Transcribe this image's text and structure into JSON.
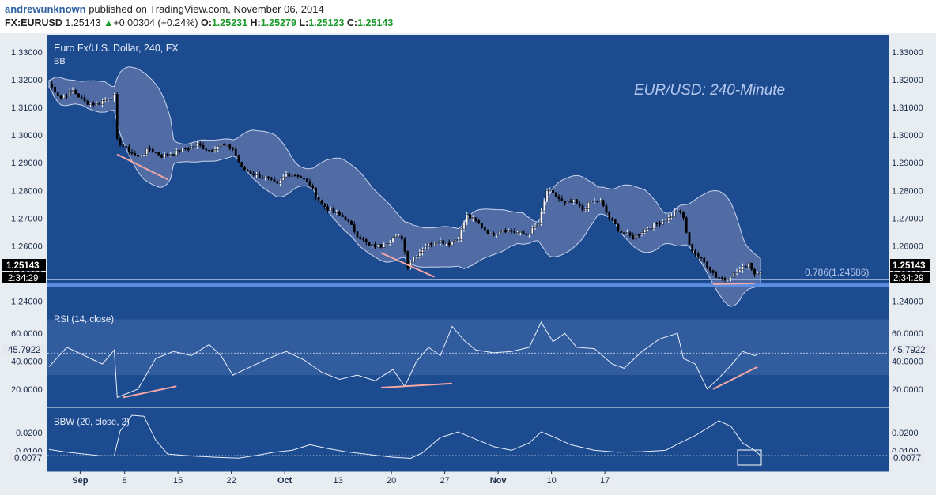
{
  "header": {
    "author": "andrewunknown",
    "published": "published on TradingView.com, November 06, 2014",
    "symbol": "FX:EURUSD",
    "last": "1.25143",
    "change_arrow": "▲",
    "change": "+0.00304 (+0.24%)",
    "o_label": "O:",
    "o_value": "1.25231",
    "h_label": "H:",
    "h_value": "1.25279",
    "l_label": "L:",
    "l_value": "1.25123",
    "c_label": "C:",
    "c_value": "1.25143"
  },
  "colors": {
    "background": "#1d4b8f",
    "bands_fill": "#5a72a8",
    "candle_up": "#ffffff",
    "candle_down": "#000000",
    "indicator_line": "#e8eefa",
    "annotation": "#f4a7a7",
    "fib_line": "#5b8ee0",
    "title_text": "#b4c8ee"
  },
  "chart_data": [
    {
      "type": "candlestick",
      "title": "Euro Fx/U.S. Dollar, 240, FX",
      "indicator_label": "BB",
      "annotation_text": "EUR/USD: 240-Minute",
      "ylim": [
        1.2362,
        1.3362
      ],
      "y_ticks": [
        "1.33000",
        "1.32000",
        "1.31000",
        "1.30000",
        "1.29000",
        "1.28000",
        "1.27000",
        "1.26000",
        "1.25000",
        "1.24000"
      ],
      "x_ticks": [
        "Sep",
        "8",
        "15",
        "22",
        "Oct",
        "13",
        "20",
        "27",
        "Nov",
        "10",
        "17"
      ],
      "last_price_label": "1.25143",
      "countdown": "2:34:29",
      "fib_label": "0.786(1.24586)",
      "fib_level": 1.24586,
      "close_path": [
        [
          0,
          1.3185
        ],
        [
          4,
          1.3135
        ],
        [
          8,
          1.316
        ],
        [
          12,
          1.312
        ],
        [
          16,
          1.311
        ],
        [
          20,
          1.3135
        ],
        [
          22,
          1.314
        ],
        [
          23,
          1.298
        ],
        [
          26,
          1.295
        ],
        [
          30,
          1.292
        ],
        [
          34,
          1.295
        ],
        [
          38,
          1.2925
        ],
        [
          42,
          1.2935
        ],
        [
          46,
          1.295
        ],
        [
          50,
          1.2965
        ],
        [
          54,
          1.2945
        ],
        [
          58,
          1.2965
        ],
        [
          62,
          1.295
        ],
        [
          65,
          1.288
        ],
        [
          69,
          1.286
        ],
        [
          73,
          1.2845
        ],
        [
          77,
          1.282
        ],
        [
          80,
          1.286
        ],
        [
          84,
          1.2855
        ],
        [
          88,
          1.282
        ],
        [
          92,
          1.275
        ],
        [
          96,
          1.272
        ],
        [
          100,
          1.27
        ],
        [
          104,
          1.264
        ],
        [
          108,
          1.26
        ],
        [
          112,
          1.26
        ],
        [
          116,
          1.263
        ],
        [
          119,
          1.263
        ],
        [
          121,
          1.253
        ],
        [
          123,
          1.256
        ],
        [
          127,
          1.26
        ],
        [
          131,
          1.262
        ],
        [
          135,
          1.261
        ],
        [
          138,
          1.263
        ],
        [
          141,
          1.271
        ],
        [
          145,
          1.268
        ],
        [
          149,
          1.264
        ],
        [
          153,
          1.266
        ],
        [
          157,
          1.265
        ],
        [
          161,
          1.264
        ],
        [
          165,
          1.268
        ],
        [
          168,
          1.28
        ],
        [
          171,
          1.278
        ],
        [
          174,
          1.275
        ],
        [
          177,
          1.276
        ],
        [
          180,
          1.273
        ],
        [
          183,
          1.276
        ],
        [
          186,
          1.276
        ],
        [
          189,
          1.27
        ],
        [
          193,
          1.265
        ],
        [
          197,
          1.263
        ],
        [
          201,
          1.266
        ],
        [
          205,
          1.268
        ],
        [
          209,
          1.27
        ],
        [
          212,
          1.273
        ],
        [
          214,
          1.27
        ],
        [
          216,
          1.26
        ],
        [
          219,
          1.256
        ],
        [
          222,
          1.253
        ],
        [
          225,
          1.249
        ],
        [
          228,
          1.248
        ],
        [
          231,
          1.25
        ],
        [
          234,
          1.252
        ],
        [
          236,
          1.254
        ],
        [
          238,
          1.25
        ],
        [
          240,
          1.2514
        ]
      ],
      "series": [
        {
          "name": "RSI (14, close)",
          "last": "45.7922",
          "y_ticks": [
            "60.0000",
            "40.0000",
            "20.0000"
          ],
          "ylim": [
            8,
            76
          ],
          "band": [
            30,
            70
          ],
          "points": [
            [
              0,
              36
            ],
            [
              6,
              50
            ],
            [
              12,
              44
            ],
            [
              18,
              38
            ],
            [
              22,
              48
            ],
            [
              23,
              14
            ],
            [
              30,
              20
            ],
            [
              36,
              42
            ],
            [
              42,
              47
            ],
            [
              48,
              44
            ],
            [
              54,
              52
            ],
            [
              58,
              44
            ],
            [
              62,
              30
            ],
            [
              68,
              36
            ],
            [
              74,
              42
            ],
            [
              80,
              47
            ],
            [
              86,
              41
            ],
            [
              92,
              32
            ],
            [
              98,
              27
            ],
            [
              104,
              30
            ],
            [
              110,
              26
            ],
            [
              116,
              34
            ],
            [
              120,
              22
            ],
            [
              124,
              40
            ],
            [
              128,
              50
            ],
            [
              132,
              44
            ],
            [
              136,
              65
            ],
            [
              140,
              55
            ],
            [
              144,
              48
            ],
            [
              150,
              46
            ],
            [
              156,
              47
            ],
            [
              162,
              50
            ],
            [
              166,
              68
            ],
            [
              170,
              54
            ],
            [
              174,
              60
            ],
            [
              178,
              50
            ],
            [
              184,
              49
            ],
            [
              190,
              38
            ],
            [
              194,
              35
            ],
            [
              200,
              47
            ],
            [
              206,
              56
            ],
            [
              212,
              60
            ],
            [
              214,
              42
            ],
            [
              218,
              38
            ],
            [
              222,
              20
            ],
            [
              226,
              28
            ],
            [
              230,
              37
            ],
            [
              234,
              47
            ],
            [
              238,
              44
            ],
            [
              240,
              45.79
            ]
          ]
        },
        {
          "name": "BBW (20, close, 2)",
          "last": "0.0077",
          "y_ticks": [
            "0.0200",
            "0.0100"
          ],
          "ylim": [
            0,
            0.0325
          ],
          "points": [
            [
              0,
              0.011
            ],
            [
              6,
              0.0095
            ],
            [
              12,
              0.0085
            ],
            [
              18,
              0.0075
            ],
            [
              22,
              0.0076
            ],
            [
              24,
              0.021
            ],
            [
              28,
              0.0295
            ],
            [
              32,
              0.029
            ],
            [
              36,
              0.016
            ],
            [
              40,
              0.0085
            ],
            [
              48,
              0.0075
            ],
            [
              56,
              0.0068
            ],
            [
              64,
              0.0063
            ],
            [
              70,
              0.0078
            ],
            [
              76,
              0.0095
            ],
            [
              82,
              0.0105
            ],
            [
              88,
              0.0135
            ],
            [
              94,
              0.0115
            ],
            [
              100,
              0.0098
            ],
            [
              108,
              0.0082
            ],
            [
              116,
              0.0068
            ],
            [
              122,
              0.0062
            ],
            [
              126,
              0.0092
            ],
            [
              132,
              0.0175
            ],
            [
              138,
              0.0205
            ],
            [
              144,
              0.0165
            ],
            [
              150,
              0.0125
            ],
            [
              156,
              0.0105
            ],
            [
              162,
              0.0145
            ],
            [
              166,
              0.0205
            ],
            [
              170,
              0.018
            ],
            [
              176,
              0.0135
            ],
            [
              184,
              0.0105
            ],
            [
              192,
              0.0095
            ],
            [
              200,
              0.0098
            ],
            [
              208,
              0.0105
            ],
            [
              214,
              0.0155
            ],
            [
              218,
              0.0185
            ],
            [
              222,
              0.0225
            ],
            [
              226,
              0.0265
            ],
            [
              230,
              0.0235
            ],
            [
              234,
              0.0145
            ],
            [
              238,
              0.0105
            ],
            [
              240,
              0.0077
            ]
          ]
        }
      ]
    }
  ]
}
